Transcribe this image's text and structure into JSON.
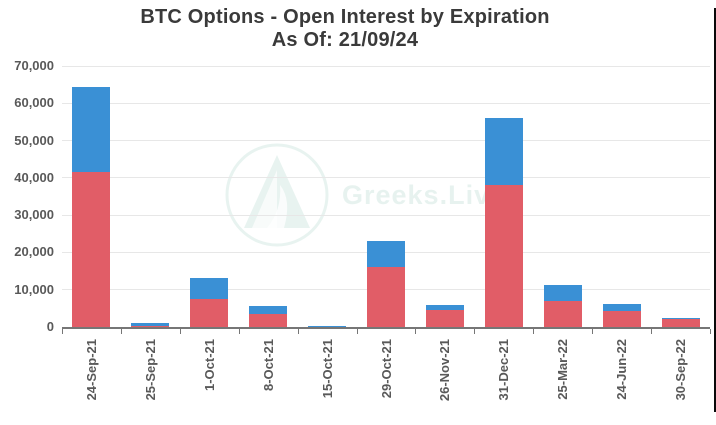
{
  "title": "BTC Options - Open Interest by Expiration",
  "subtitle": "As Of: 21/09/24",
  "watermark": "Greeks.Live",
  "colors": {
    "red_series": "#e15d67",
    "blue_series": "#3a90d5",
    "gridline": "#e7e7e7",
    "axis": "#767676",
    "tick_text": "#595959",
    "title_text": "#3a3a3a",
    "watermark": "#cbe4dd",
    "background": "#ffffff"
  },
  "chart_data": {
    "type": "bar",
    "stacked": true,
    "title": "BTC Options - Open Interest by Expiration",
    "subtitle": "As Of: 21/09/24",
    "xlabel": "",
    "ylabel": "",
    "ylim": [
      0,
      70000
    ],
    "grid": true,
    "legend": false,
    "categories": [
      "24-Sep-21",
      "25-Sep-21",
      "1-Oct-21",
      "8-Oct-21",
      "15-Oct-21",
      "29-Oct-21",
      "26-Nov-21",
      "31-Dec-21",
      "25-Mar-22",
      "24-Jun-22",
      "30-Sep-22"
    ],
    "yticks": [
      "0",
      "10,000",
      "20,000",
      "30,000",
      "40,000",
      "50,000",
      "60,000",
      "70,000"
    ],
    "ytick_values": [
      0,
      10000,
      20000,
      30000,
      40000,
      50000,
      60000,
      70000
    ],
    "series": [
      {
        "name": "red",
        "color": "#e15d67",
        "values": [
          41700,
          400,
          7400,
          3400,
          200,
          16200,
          4500,
          38000,
          6900,
          4200,
          2200
        ]
      },
      {
        "name": "blue",
        "color": "#3a90d5",
        "values": [
          22600,
          600,
          5800,
          2200,
          100,
          6800,
          1500,
          18000,
          4300,
          2100,
          200
        ]
      }
    ],
    "totals": [
      64300,
      1000,
      13200,
      5600,
      300,
      23000,
      6000,
      56000,
      11200,
      6300,
      2400
    ]
  }
}
